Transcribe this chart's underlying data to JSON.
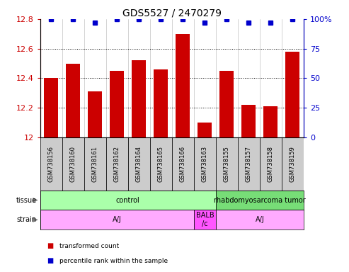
{
  "title": "GDS5527 / 2470279",
  "samples": [
    "GSM738156",
    "GSM738160",
    "GSM738161",
    "GSM738162",
    "GSM738164",
    "GSM738165",
    "GSM738166",
    "GSM738163",
    "GSM738155",
    "GSM738157",
    "GSM738158",
    "GSM738159"
  ],
  "bar_values": [
    12.4,
    12.5,
    12.31,
    12.45,
    12.52,
    12.46,
    12.7,
    12.1,
    12.45,
    12.22,
    12.21,
    12.58
  ],
  "percentile_values": [
    100,
    100,
    97,
    100,
    100,
    100,
    100,
    97,
    100,
    97,
    97,
    100
  ],
  "bar_color": "#cc0000",
  "dot_color": "#0000cc",
  "ylim_left": [
    12.0,
    12.8
  ],
  "ylim_right": [
    0,
    100
  ],
  "yticks_left": [
    12.0,
    12.2,
    12.4,
    12.6,
    12.8
  ],
  "yticks_right": [
    0,
    25,
    50,
    75,
    100
  ],
  "yticklabels_right": [
    "0",
    "25",
    "50",
    "75",
    "100%"
  ],
  "dotted_lines": [
    12.2,
    12.4,
    12.6
  ],
  "tissue_groups": [
    {
      "label": "control",
      "start": 0,
      "end": 8,
      "color": "#aaffaa"
    },
    {
      "label": "rhabdomyosarcoma tumor",
      "start": 8,
      "end": 12,
      "color": "#77dd77"
    }
  ],
  "strain_groups": [
    {
      "label": "A/J",
      "start": 0,
      "end": 7,
      "color": "#ffaaff"
    },
    {
      "label": "BALB\n/c",
      "start": 7,
      "end": 8,
      "color": "#ff55ff"
    },
    {
      "label": "A/J",
      "start": 8,
      "end": 12,
      "color": "#ffaaff"
    }
  ],
  "legend_items": [
    {
      "label": "transformed count",
      "color": "#cc0000"
    },
    {
      "label": "percentile rank within the sample",
      "color": "#0000cc"
    }
  ],
  "bar_width": 0.65,
  "sample_box_color": "#cccccc",
  "plot_bg_color": "#ffffff",
  "title_fontsize": 10,
  "tick_fontsize": 8,
  "sample_fontsize": 6
}
